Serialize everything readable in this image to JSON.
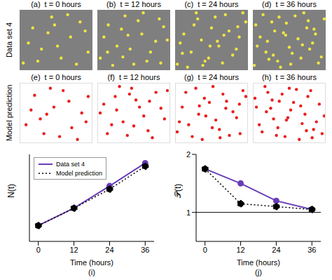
{
  "chart_data": [
    {
      "type": "scatter",
      "label": "(a)",
      "title": "t = 0 hours",
      "ylabel": "Data set 4",
      "color": "#f0e442",
      "marker": "circle",
      "xlim": [
        0,
        100
      ],
      "ylim": [
        0,
        100
      ],
      "tick_labels": false,
      "x": [
        5,
        18,
        30,
        44,
        57,
        70,
        83,
        94,
        12,
        25,
        39,
        52,
        66,
        78,
        90,
        48
      ],
      "y": [
        12,
        70,
        35,
        88,
        20,
        55,
        80,
        30,
        45,
        15,
        62,
        40,
        92,
        10,
        65,
        75
      ]
    },
    {
      "type": "scatter",
      "label": "(b)",
      "title": "t = 12 hours",
      "color": "#f0e442",
      "marker": "circle",
      "xlim": [
        0,
        100
      ],
      "ylim": [
        0,
        100
      ],
      "tick_labels": false,
      "x": [
        4,
        15,
        27,
        38,
        50,
        61,
        73,
        85,
        96,
        9,
        21,
        33,
        45,
        56,
        68,
        80,
        91,
        14,
        42,
        63,
        87,
        35
      ],
      "y": [
        20,
        75,
        40,
        90,
        10,
        60,
        30,
        85,
        50,
        55,
        8,
        68,
        35,
        82,
        15,
        48,
        72,
        30,
        58,
        95,
        12,
        22
      ]
    },
    {
      "type": "scatter",
      "label": "(c)",
      "title": "t = 24 hours",
      "color": "#f0e442",
      "marker": "circle",
      "xlim": [
        0,
        100
      ],
      "ylim": [
        0,
        100
      ],
      "tick_labels": false,
      "x": [
        3,
        12,
        22,
        31,
        41,
        50,
        60,
        69,
        79,
        88,
        97,
        7,
        17,
        26,
        36,
        46,
        55,
        65,
        74,
        84,
        93,
        10,
        29,
        48,
        67,
        86,
        38,
        58
      ],
      "y": [
        10,
        60,
        30,
        85,
        15,
        70,
        40,
        92,
        25,
        55,
        80,
        45,
        5,
        75,
        50,
        20,
        88,
        12,
        65,
        35,
        95,
        28,
        95,
        40,
        58,
        72,
        8,
        48
      ]
    },
    {
      "type": "scatter",
      "label": "(d)",
      "title": "t = 36 hours",
      "color": "#f0e442",
      "marker": "circle",
      "xlim": [
        0,
        100
      ],
      "ylim": [
        0,
        100
      ],
      "tick_labels": false,
      "x": [
        2,
        10,
        18,
        26,
        34,
        42,
        50,
        58,
        66,
        74,
        82,
        90,
        98,
        6,
        14,
        22,
        30,
        38,
        46,
        54,
        62,
        70,
        78,
        86,
        94,
        4,
        20,
        36,
        52,
        68,
        84,
        45,
        28,
        76
      ],
      "y": [
        8,
        55,
        30,
        80,
        15,
        62,
        38,
        90,
        20,
        70,
        45,
        12,
        85,
        40,
        92,
        18,
        65,
        5,
        78,
        28,
        52,
        95,
        35,
        60,
        22,
        75,
        48,
        88,
        10,
        42,
        68,
        58,
        25,
        82
      ]
    },
    {
      "type": "scatter",
      "label": "(e)",
      "title": "t = 0 hours",
      "ylabel": "Model prediction",
      "color": "#e8201e",
      "marker": "circle",
      "xlim": [
        0,
        100
      ],
      "ylim": [
        0,
        100
      ],
      "tick_labels": false,
      "x": [
        8,
        20,
        33,
        47,
        60,
        72,
        86,
        95,
        15,
        28,
        42,
        55,
        68,
        80,
        92,
        37
      ],
      "y": [
        30,
        80,
        15,
        60,
        88,
        25,
        50,
        78,
        55,
        40,
        92,
        10,
        70,
        5,
        35,
        48
      ]
    },
    {
      "type": "scatter",
      "label": "(f)",
      "title": "t = 12 hours",
      "color": "#e8201e",
      "marker": "circle",
      "xlim": [
        0,
        100
      ],
      "ylim": [
        0,
        100
      ],
      "tick_labels": false,
      "x": [
        3,
        13,
        24,
        35,
        47,
        58,
        70,
        81,
        93,
        8,
        19,
        30,
        41,
        53,
        64,
        76,
        88,
        97,
        26,
        50,
        72,
        44
      ],
      "y": [
        50,
        15,
        78,
        35,
        92,
        60,
        20,
        85,
        40,
        65,
        30,
        95,
        12,
        72,
        45,
        8,
        58,
        88,
        55,
        28,
        70,
        82
      ]
    },
    {
      "type": "scatter",
      "label": "(g)",
      "title": "t = 24 hours",
      "color": "#e8201e",
      "marker": "circle",
      "xlim": [
        0,
        100
      ],
      "ylim": [
        0,
        100
      ],
      "tick_labels": false,
      "x": [
        5,
        14,
        23,
        33,
        42,
        52,
        61,
        71,
        80,
        90,
        98,
        9,
        18,
        28,
        37,
        47,
        56,
        66,
        75,
        85,
        94,
        2,
        32,
        51,
        70,
        89,
        40,
        62
      ],
      "y": [
        35,
        85,
        10,
        62,
        45,
        95,
        22,
        70,
        52,
        15,
        78,
        60,
        30,
        92,
        5,
        68,
        38,
        82,
        12,
        42,
        88,
        18,
        48,
        25,
        58,
        65,
        75,
        8
      ]
    },
    {
      "type": "scatter",
      "label": "(h)",
      "title": "t = 36 hours",
      "color": "#e8201e",
      "marker": "circle",
      "xlim": [
        0,
        100
      ],
      "ylim": [
        0,
        100
      ],
      "tick_labels": false,
      "x": [
        4,
        12,
        20,
        28,
        36,
        44,
        52,
        60,
        68,
        76,
        84,
        92,
        99,
        8,
        16,
        24,
        32,
        40,
        48,
        56,
        64,
        72,
        80,
        88,
        96,
        2,
        18,
        34,
        50,
        66,
        82,
        46,
        26,
        74
      ],
      "y": [
        60,
        18,
        85,
        40,
        70,
        10,
        55,
        90,
        32,
        78,
        22,
        65,
        45,
        30,
        95,
        58,
        12,
        82,
        42,
        68,
        5,
        48,
        88,
        35,
        15,
        75,
        52,
        25,
        92,
        62,
        8,
        38,
        72,
        20
      ]
    },
    {
      "type": "line",
      "label": "(i)",
      "xlabel": "Time (hours)",
      "ylabel": "N(t)",
      "x": [
        0,
        12,
        24,
        36
      ],
      "xlim": [
        -3,
        39
      ],
      "xticks": [
        0,
        12,
        24,
        36
      ],
      "ylim": [
        400,
        1500
      ],
      "tick_labels": "x",
      "legend": "upper left",
      "series": [
        {
          "name": "Data set 4",
          "color": "#6a3db8",
          "marker": "circle",
          "line_style": "solid",
          "values": [
            600,
            820,
            1100,
            1390
          ]
        },
        {
          "name": "Model prediction",
          "color": "#000000",
          "marker": "circle",
          "line_style": "dotted",
          "values": [
            600,
            820,
            1060,
            1350
          ]
        }
      ]
    },
    {
      "type": "line",
      "label": "(j)",
      "xlabel": "Time (hours)",
      "ylabel": "𝒫(t)",
      "x": [
        0,
        12,
        24,
        36
      ],
      "xlim": [
        -3,
        39
      ],
      "xticks": [
        0,
        12,
        24,
        36
      ],
      "ylim": [
        0.5,
        2
      ],
      "yticks": [
        1,
        2
      ],
      "hline": 1,
      "series": [
        {
          "name": "Data set 4",
          "color": "#6a3db8",
          "marker": "circle",
          "line_style": "solid",
          "values": [
            1.75,
            1.5,
            1.2,
            1.05
          ]
        },
        {
          "name": "Model prediction",
          "color": "#000000",
          "marker": "circle",
          "line_style": "dotted",
          "values": [
            1.75,
            1.15,
            1.1,
            1.05
          ]
        }
      ]
    }
  ]
}
